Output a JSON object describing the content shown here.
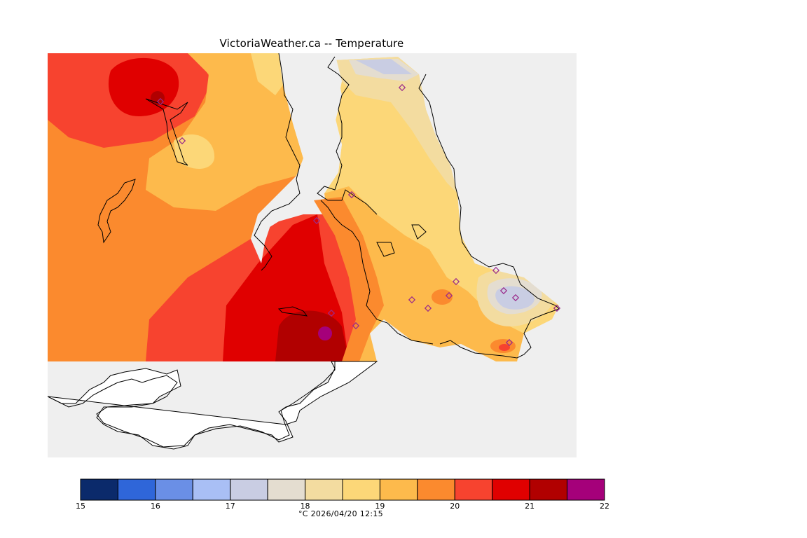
{
  "title": "VictoriaWeather.ca -- Temperature",
  "colorbar": {
    "colors": [
      "#0b2a6b",
      "#2f66d9",
      "#6a8fe6",
      "#a9bff5",
      "#c9cde3",
      "#e4ddd0",
      "#f3dca0",
      "#fcd778",
      "#fdba4c",
      "#fb8a2e",
      "#f7432f",
      "#e00000",
      "#b10000",
      "#a5007a"
    ],
    "ticks": [
      "15",
      "16",
      "17",
      "18",
      "19",
      "20",
      "21",
      "22"
    ],
    "unit_and_time": "°C  2026/04/20 12:15"
  },
  "map": {
    "background": "#efefef",
    "land_blank": "#ffffff",
    "station_marker_color": "#9a2a8a"
  }
}
